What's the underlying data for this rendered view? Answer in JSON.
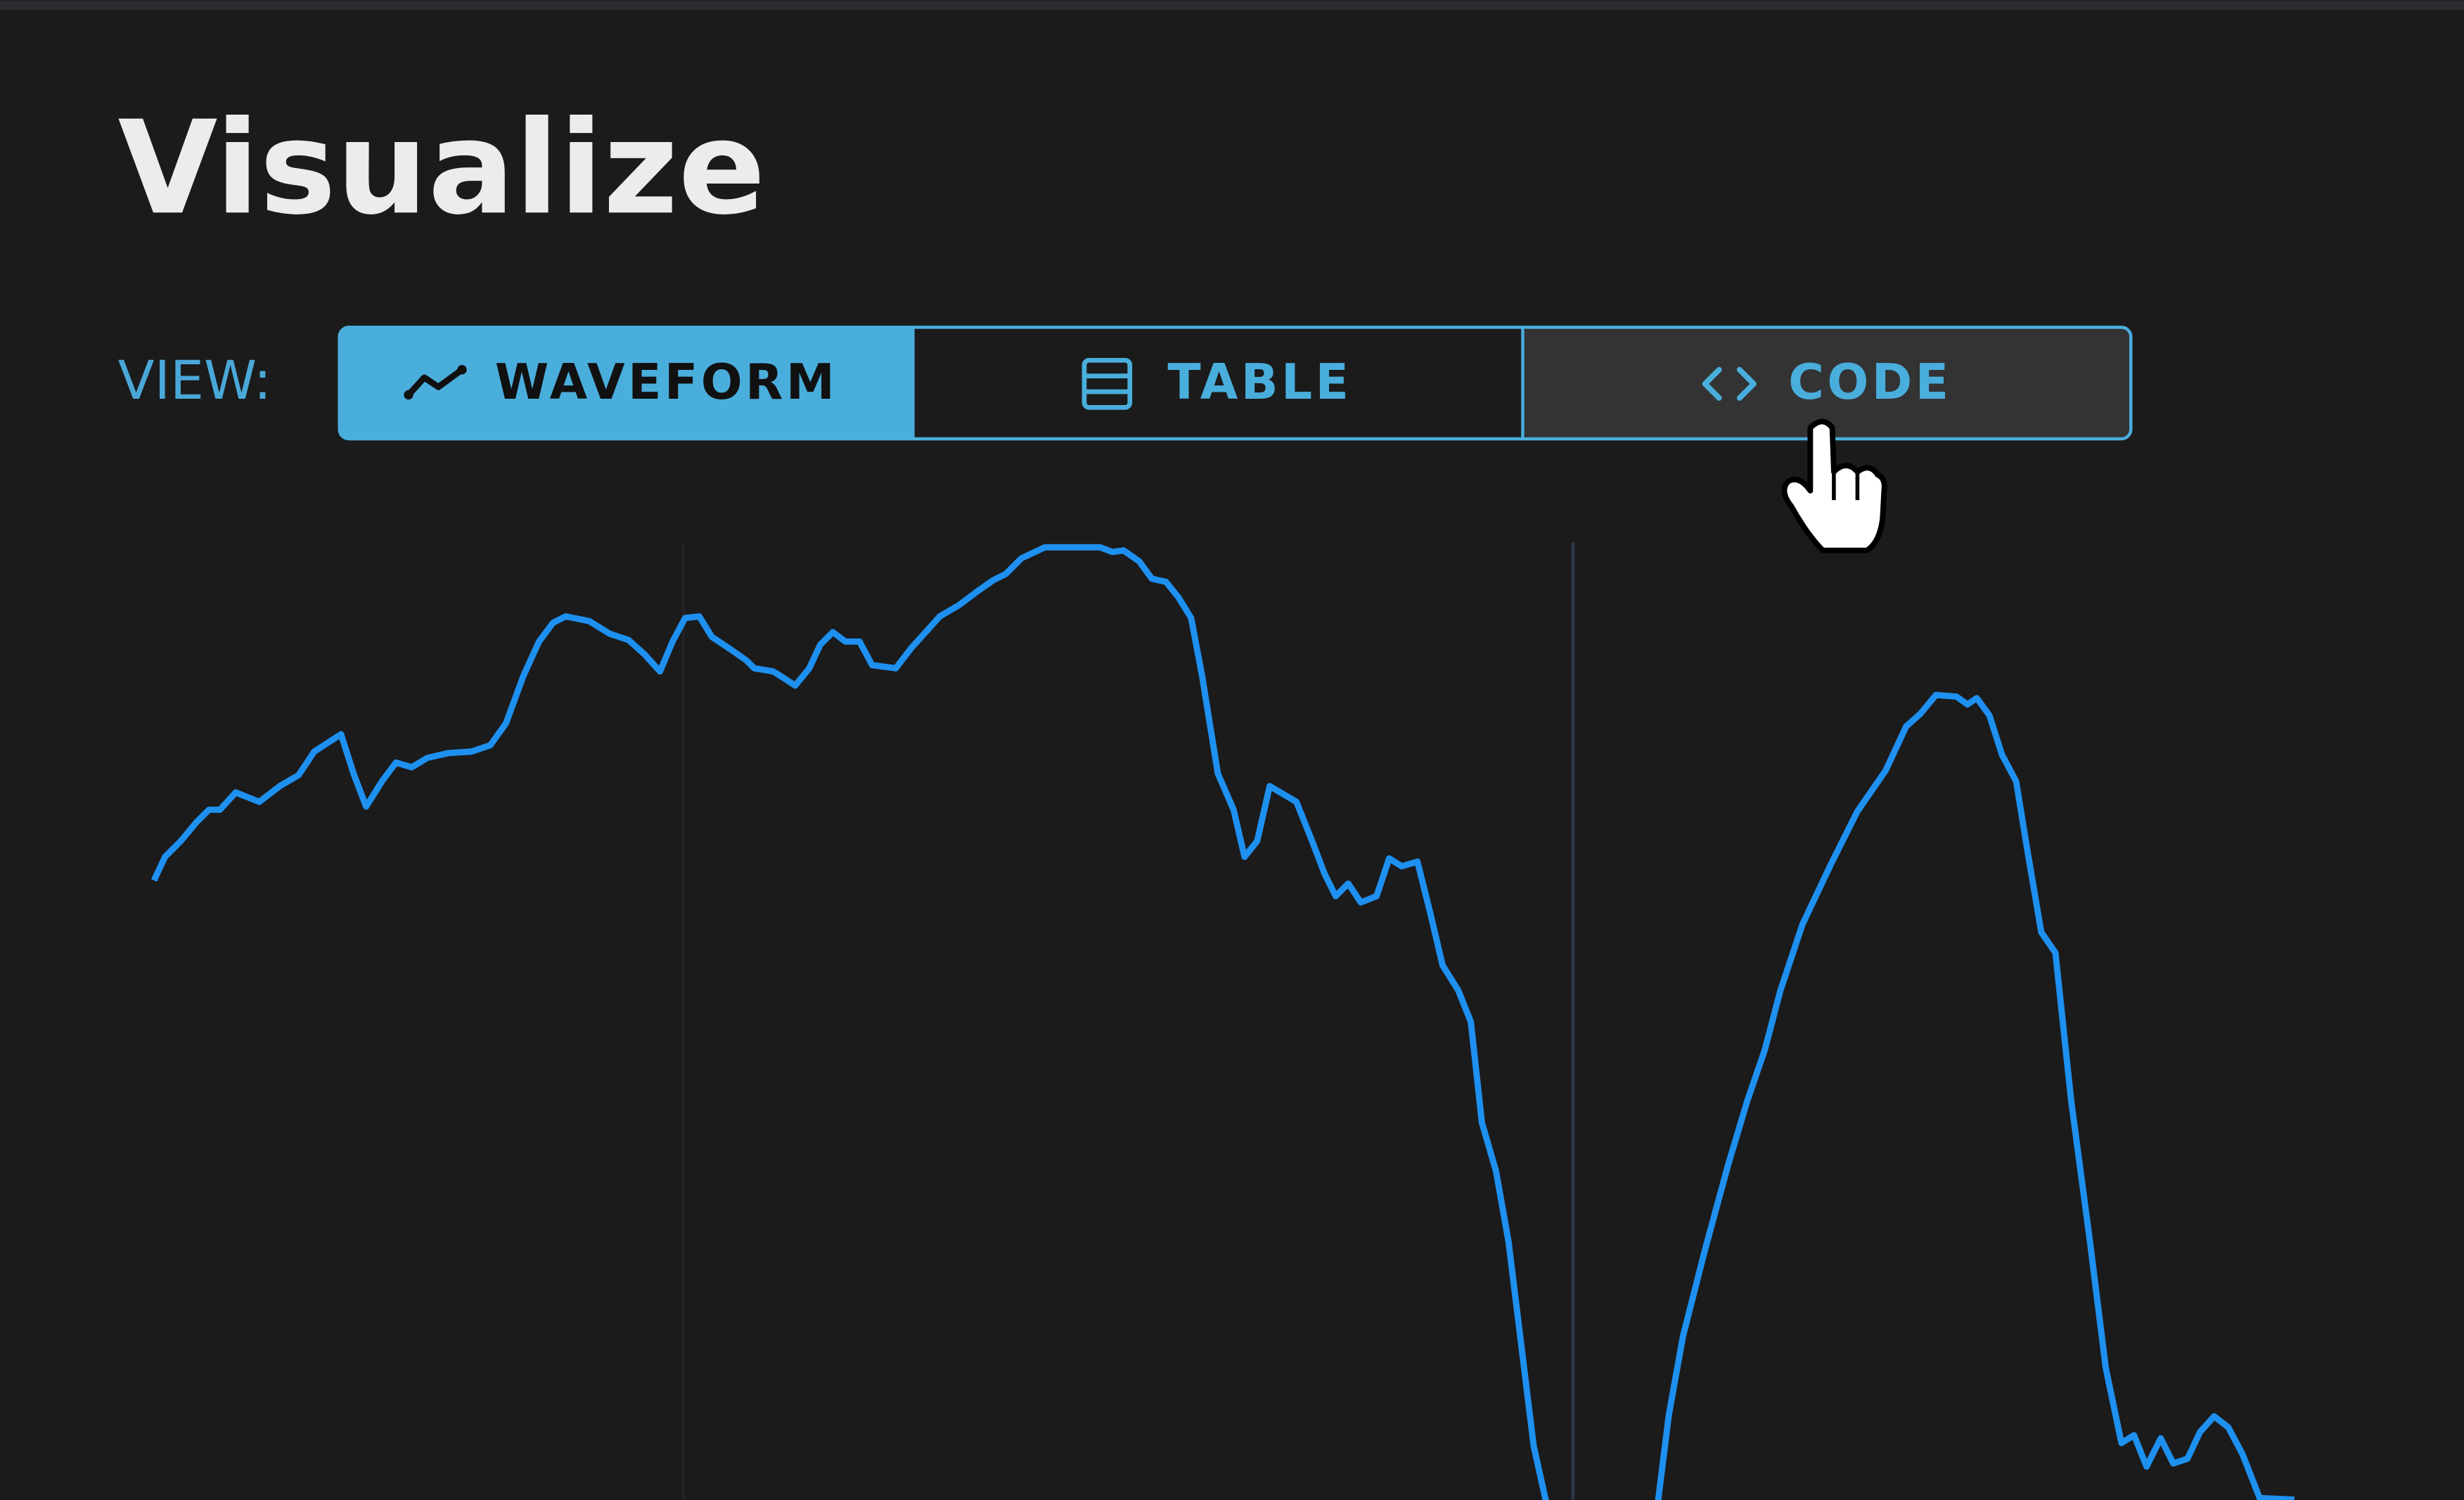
{
  "header": {
    "title": "Visualize"
  },
  "view_selector": {
    "label": "VIEW:",
    "options": [
      "WAVEFORM",
      "TABLE",
      "CODE"
    ]
  }
}
